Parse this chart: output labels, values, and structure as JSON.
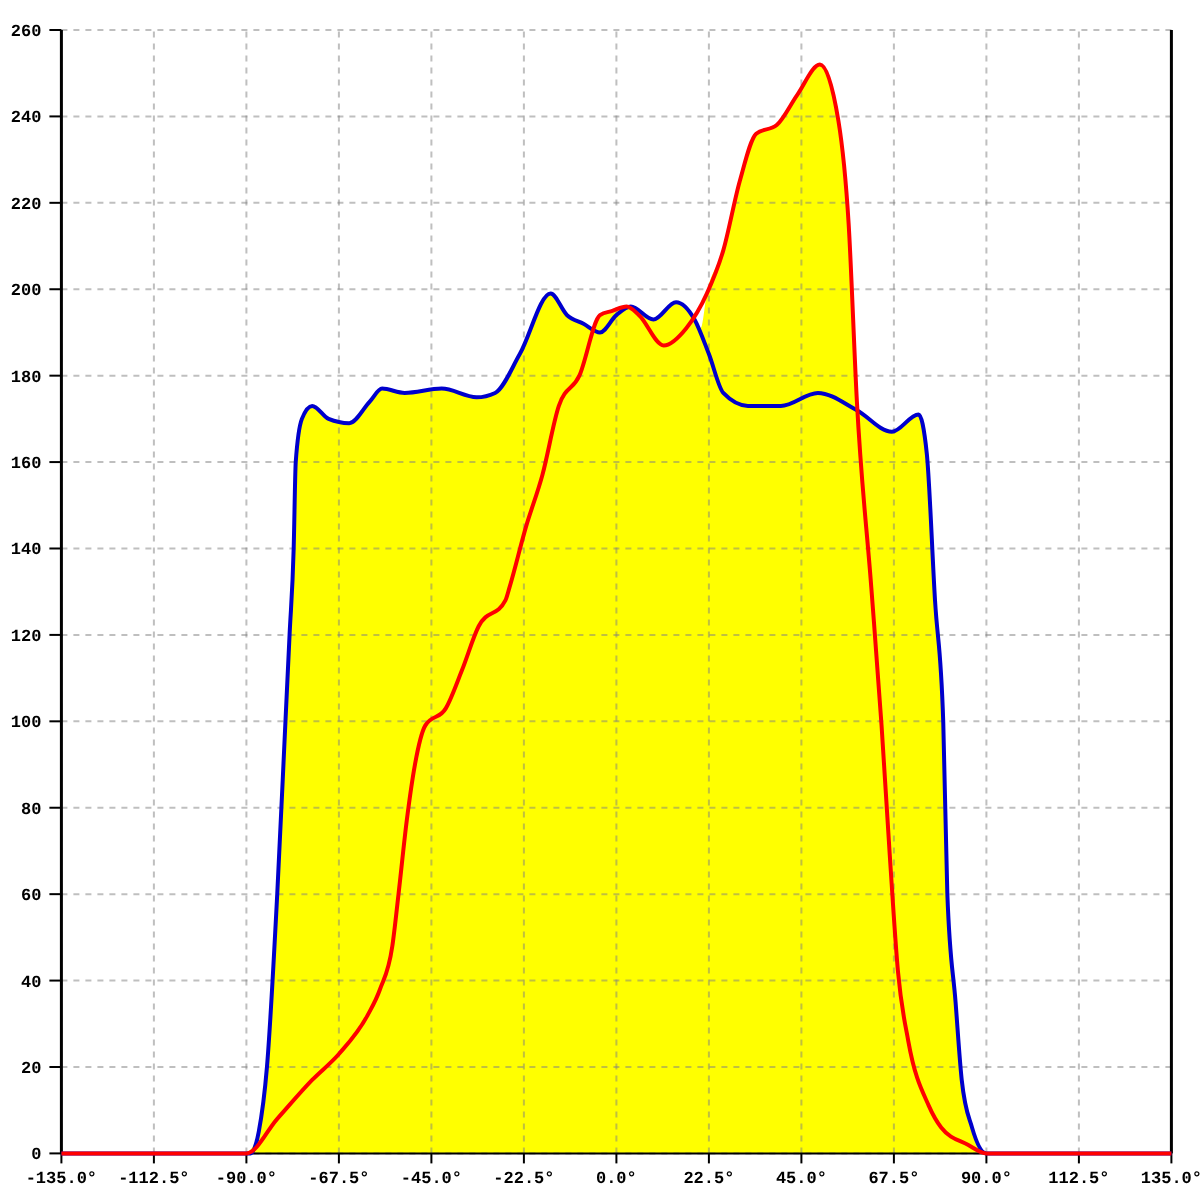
{
  "chart_data": {
    "type": "line",
    "xlim": [
      -135,
      135
    ],
    "ylim": [
      0,
      260
    ],
    "xticks": [
      {
        "value": -135,
        "label": "-135.0°"
      },
      {
        "value": -112.5,
        "label": "-112.5°"
      },
      {
        "value": -90,
        "label": "-90.0°"
      },
      {
        "value": -67.5,
        "label": "-67.5°"
      },
      {
        "value": -45,
        "label": "-45.0°"
      },
      {
        "value": -22.5,
        "label": "-22.5°"
      },
      {
        "value": 0,
        "label": "0.0°"
      },
      {
        "value": 22.5,
        "label": "22.5°"
      },
      {
        "value": 45,
        "label": "45.0°"
      },
      {
        "value": 67.5,
        "label": "67.5°"
      },
      {
        "value": 90,
        "label": "90.0°"
      },
      {
        "value": 112.5,
        "label": "112.5°"
      },
      {
        "value": 135,
        "label": "135.0°"
      }
    ],
    "yticks": [
      0,
      20,
      40,
      60,
      80,
      100,
      120,
      140,
      160,
      180,
      200,
      220,
      240,
      260
    ],
    "grid": true,
    "series": [
      {
        "type": "area",
        "color": "#ffff00",
        "x": [
          -90,
          -87,
          -85,
          -82.5,
          -80.5,
          -79.5,
          -78.5,
          -78,
          -76.5,
          -74,
          -70,
          -65,
          -60,
          -57,
          -51.5,
          -42.5,
          -34,
          -29.5,
          -23.5,
          -16,
          -12,
          -8,
          -5.5,
          -4,
          -1,
          2.5,
          3.5,
          9,
          14.5,
          19,
          20.5,
          22,
          26,
          30,
          34,
          39,
          44,
          49.5,
          54,
          56.5,
          58.5,
          59,
          67,
          73.5,
          75.5,
          77.5,
          79.5,
          80.5,
          82.5,
          84,
          86.5,
          90
        ],
        "values": [
          0,
          5,
          20,
          60,
          100,
          120,
          140,
          160,
          170,
          173,
          170,
          169,
          174,
          177,
          176,
          177,
          175,
          176,
          185,
          199,
          194,
          192,
          191,
          194,
          195,
          196,
          196,
          193,
          197,
          193,
          191,
          199,
          209,
          225,
          236,
          238,
          245,
          252,
          239,
          215,
          174,
          172,
          167,
          171,
          162,
          128,
          100,
          60,
          35,
          17,
          6,
          0
        ]
      },
      {
        "color": "#0000cc",
        "x": [
          -135,
          -89,
          -87,
          -85,
          -82.5,
          -80.5,
          -79.5,
          -78.5,
          -78,
          -76.5,
          -74,
          -70,
          -65,
          -60,
          -57,
          -51.5,
          -42.5,
          -34,
          -29.5,
          -23.5,
          -16,
          -12,
          -8,
          -4,
          0,
          3.5,
          9,
          14.5,
          19,
          22.5,
          26,
          32,
          40,
          49,
          58.5,
          67,
          73.5,
          75.5,
          77.5,
          79.5,
          80.5,
          82.5,
          84,
          86.5,
          90,
          135
        ],
        "values": [
          0,
          0,
          5,
          20,
          60,
          100,
          120,
          140,
          160,
          170,
          173,
          170,
          169,
          174,
          177,
          176,
          177,
          175,
          176,
          185,
          199,
          194,
          192,
          190,
          194,
          196,
          193,
          197,
          193,
          185,
          176,
          173,
          173,
          176,
          172,
          167,
          171,
          162,
          128,
          100,
          60,
          35,
          17,
          6,
          0,
          0
        ]
      },
      {
        "color": "#ff0000",
        "x": [
          -135,
          -90,
          -82.5,
          -74,
          -67.5,
          -60.5,
          -57.5,
          -54.5,
          -53,
          -51,
          -49,
          -46.5,
          -41.5,
          -37.5,
          -33.5,
          -27,
          -26,
          -22,
          -18,
          -14,
          -9,
          -4,
          -1,
          2.5,
          5.5,
          11.5,
          17,
          22,
          26,
          30,
          34,
          39,
          44,
          49.5,
          54,
          56.5,
          58.5,
          62,
          64.5,
          66.5,
          68.5,
          71,
          76,
          79,
          85.5,
          90,
          135
        ],
        "values": [
          0,
          0,
          8,
          17,
          23,
          32,
          38,
          48,
          60,
          77,
          90,
          99,
          103,
          112,
          122,
          128,
          131,
          145,
          157,
          173,
          180,
          194,
          195,
          196,
          194,
          187,
          191,
          199,
          209,
          225,
          236,
          238,
          245,
          252,
          239,
          215,
          174,
          131,
          99,
          69,
          42,
          26,
          11,
          6,
          2,
          0,
          0
        ]
      }
    ]
  }
}
